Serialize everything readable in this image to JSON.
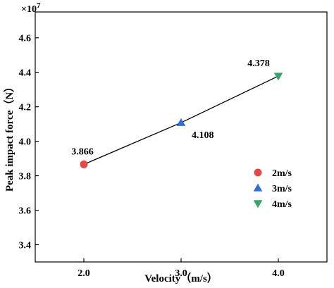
{
  "chart_data": {
    "type": "scatter",
    "xlabel": "Velocity（m/s）",
    "ylabel": "Peak impact force（N）",
    "y_multiplier": "×10",
    "y_multiplier_exp": "7",
    "xlim": [
      1.5,
      4.5
    ],
    "ylim": [
      3.3,
      4.75
    ],
    "x_ticks": [
      "2.0",
      "3.0",
      "4.0"
    ],
    "y_ticks": [
      "3.4",
      "3.6",
      "3.8",
      "4.0",
      "4.2",
      "4.4",
      "4.6"
    ],
    "grid": false,
    "legend_position": "right",
    "line": {
      "color": "#000000"
    },
    "series": [
      {
        "name": "2m/s",
        "x": 2.0,
        "y": 3.866,
        "label": "3.866",
        "marker": "circle",
        "color": "#E84545"
      },
      {
        "name": "3m/s",
        "x": 3.0,
        "y": 4.108,
        "label": "4.108",
        "marker": "triangle-up",
        "color": "#2E6FD8"
      },
      {
        "name": "4m/s",
        "x": 4.0,
        "y": 4.378,
        "label": "4.378",
        "marker": "triangle-down",
        "color": "#2FA86A"
      }
    ]
  }
}
